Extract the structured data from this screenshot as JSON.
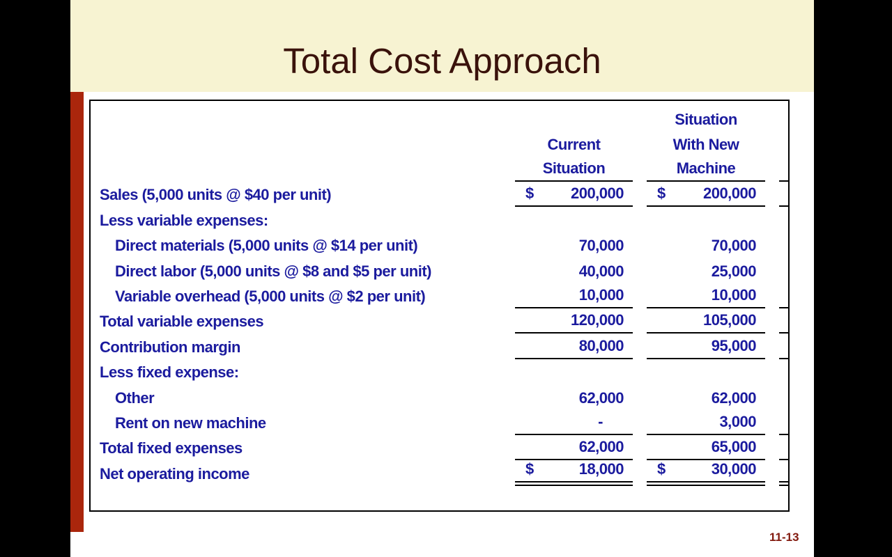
{
  "slide": {
    "title": "Total Cost Approach",
    "page_number": "11-13"
  },
  "colors": {
    "banner_bg": "#F7F3D2",
    "accent_bar": "#AA260C",
    "title_text": "#3A120B",
    "table_text": "#1B1B9E",
    "page_number_text": "#82190E",
    "frame": "#000000"
  },
  "table": {
    "header": {
      "col1": {
        "line1": "",
        "line2": "Current",
        "line3": "Situation"
      },
      "col2": {
        "line1": "Situation",
        "line2": "With New",
        "line3": "Machine"
      }
    },
    "rows": [
      {
        "label": "Sales (5,000 units @ $40 per unit)",
        "c1p": "$",
        "c1": "200,000",
        "c2p": "$",
        "c2": "200,000"
      },
      {
        "label": "Less variable expenses:",
        "c1p": "",
        "c1": "",
        "c2p": "",
        "c2": ""
      },
      {
        "label": "Direct materials (5,000 units @ $14 per unit)",
        "c1p": "",
        "c1": "70,000",
        "c2p": "",
        "c2": "70,000"
      },
      {
        "label": "Direct labor (5,000 units @ $8 and $5 per unit)",
        "c1p": "",
        "c1": "40,000",
        "c2p": "",
        "c2": "25,000"
      },
      {
        "label": "Variable overhead (5,000 units @ $2 per unit)",
        "c1p": "",
        "c1": "10,000",
        "c2p": "",
        "c2": "10,000"
      },
      {
        "label": "Total variable expenses",
        "c1p": "",
        "c1": "120,000",
        "c2p": "",
        "c2": "105,000"
      },
      {
        "label": "Contribution margin",
        "c1p": "",
        "c1": "80,000",
        "c2p": "",
        "c2": "95,000"
      },
      {
        "label": "Less fixed expense:",
        "c1p": "",
        "c1": "",
        "c2p": "",
        "c2": ""
      },
      {
        "label": "Other",
        "c1p": "",
        "c1": "62,000",
        "c2p": "",
        "c2": "62,000"
      },
      {
        "label": "Rent on new machine",
        "c1p": "",
        "c1": "-",
        "c2p": "",
        "c2": "3,000"
      },
      {
        "label": "Total fixed expenses",
        "c1p": "",
        "c1": "62,000",
        "c2p": "",
        "c2": "65,000"
      },
      {
        "label": "Net operating income",
        "c1p": "$",
        "c1": "18,000",
        "c2p": "$",
        "c2": "30,000"
      }
    ]
  }
}
